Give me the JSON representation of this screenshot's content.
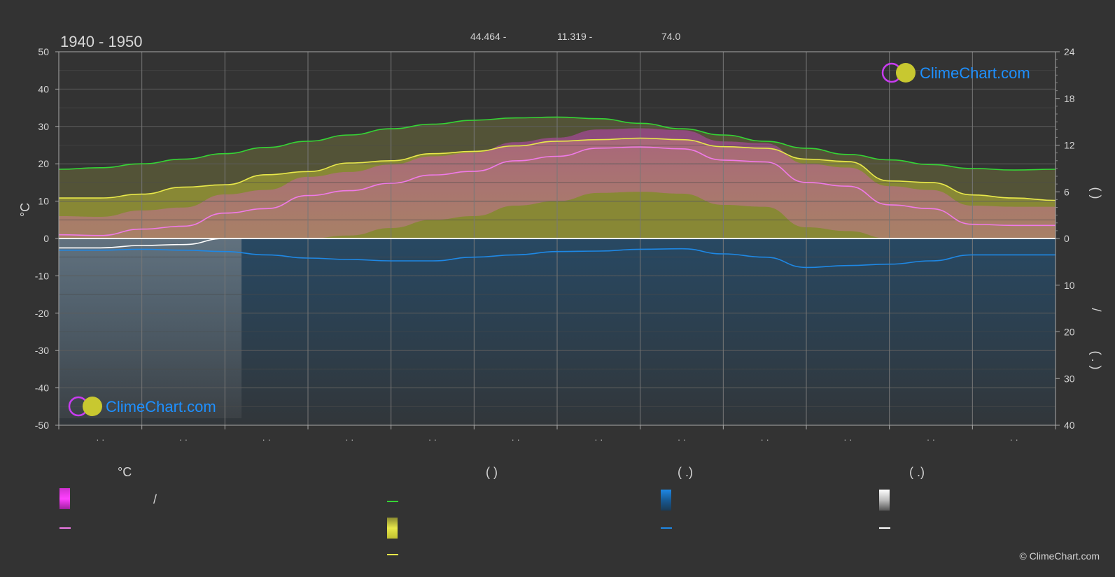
{
  "header": {
    "period": "1940 - 1950",
    "lat": "44.464 -",
    "lon": "11.319 -",
    "elevation": "74.0"
  },
  "axes": {
    "left_unit": "°C",
    "right_upper_label": "(    )",
    "right_slash": "/",
    "right_lower_label": "(  .  )"
  },
  "legend": {
    "col1_header": "°C",
    "col1_slash": "/",
    "col2_header": "(          )",
    "col3_header": "(    .)",
    "col4_header": "(    .)"
  },
  "logo": {
    "text": "ClimeChart.com"
  },
  "copyright": "© ClimeChart.com",
  "colors": {
    "background": "#333333",
    "daylight": "#35d435",
    "sunshine": "#e8e84a",
    "temp_max": "#f07ae8",
    "precip": "#1e88e5",
    "snow": "#ffffff",
    "grid": "#5a5a5a"
  },
  "chart_data": {
    "type": "area",
    "title": "",
    "month_labels": [
      "· ·",
      "· ·",
      "· ·",
      "· ·",
      "· ·",
      "· ·",
      "· ·",
      "· ·",
      "· ·",
      "· ·",
      "· ·",
      "· ·"
    ],
    "left_axis": {
      "ticks": [
        50,
        40,
        30,
        20,
        10,
        0,
        -10,
        -20,
        -30,
        -40,
        -50
      ],
      "ylim": [
        -50,
        50
      ]
    },
    "right_axis_upper": {
      "ticks": [
        24,
        18,
        12,
        6,
        0
      ],
      "ylim": [
        0,
        24
      ]
    },
    "right_axis_lower": {
      "ticks": [
        0,
        10,
        20,
        30,
        40
      ],
      "ylim": [
        0,
        40
      ]
    },
    "x": [
      0.0,
      0.5,
      1.0,
      1.5,
      2.0,
      2.5,
      3.0,
      3.5,
      4.0,
      4.5,
      5.0,
      5.5,
      6.0,
      6.5,
      7.0,
      7.5,
      8.0,
      8.5,
      9.0,
      9.5,
      10.0,
      10.5,
      11.0,
      11.5,
      12.0
    ],
    "series": [
      {
        "name": "daylight",
        "axis": "right_upper",
        "values": [
          8.9,
          9.1,
          9.6,
          10.2,
          10.9,
          11.7,
          12.5,
          13.3,
          14.1,
          14.7,
          15.2,
          15.5,
          15.6,
          15.4,
          14.8,
          14.1,
          13.3,
          12.5,
          11.6,
          10.8,
          10.1,
          9.5,
          9.0,
          8.8,
          8.9
        ]
      },
      {
        "name": "sunshine",
        "axis": "right_upper",
        "values": [
          5.2,
          5.2,
          5.7,
          6.6,
          6.9,
          8.2,
          8.6,
          9.7,
          10.0,
          10.9,
          11.2,
          11.9,
          12.5,
          12.7,
          12.9,
          12.7,
          11.8,
          11.6,
          10.2,
          9.9,
          7.4,
          7.2,
          5.6,
          5.2,
          4.9
        ]
      },
      {
        "name": "temp_max",
        "axis": "left",
        "values": [
          1.0,
          0.8,
          2.5,
          3.3,
          6.8,
          8.0,
          11.5,
          12.8,
          14.8,
          17.0,
          18.0,
          20.8,
          22.0,
          24.2,
          24.5,
          24.0,
          21.0,
          20.5,
          15.0,
          14.0,
          9.0,
          8.0,
          3.8,
          3.5,
          3.5
        ]
      },
      {
        "name": "precip",
        "axis": "right_lower",
        "values": [
          2.5,
          2.5,
          2.3,
          2.5,
          2.8,
          3.5,
          4.2,
          4.5,
          4.8,
          4.8,
          4.0,
          3.5,
          2.8,
          2.7,
          2.3,
          2.2,
          3.3,
          4.0,
          6.2,
          5.8,
          5.5,
          4.8,
          3.5,
          3.5,
          3.5
        ]
      },
      {
        "name": "snow",
        "axis": "right_lower",
        "values": [
          2.0,
          2.0,
          1.5,
          1.3,
          0,
          0,
          0,
          0,
          0,
          0,
          0,
          0,
          0,
          0,
          0,
          0,
          0,
          0,
          0,
          0,
          0,
          0,
          0,
          0,
          0
        ]
      }
    ]
  }
}
